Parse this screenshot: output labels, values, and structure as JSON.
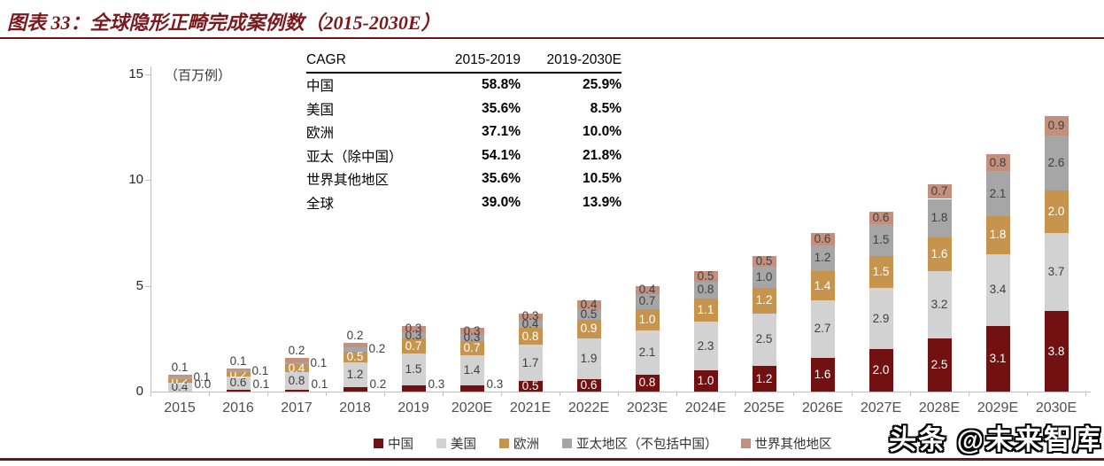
{
  "title": "图表 33：全球隐形正畸完成案例数（2015-2030E）",
  "unit_label": "（百万例）",
  "watermark": "头条 @未来智库",
  "cagr_table": {
    "header": [
      "CAGR",
      "2015-2019",
      "2019-2030E"
    ],
    "rows": [
      [
        "中国",
        "58.8%",
        "25.9%"
      ],
      [
        "美国",
        "35.6%",
        "8.5%"
      ],
      [
        "欧洲",
        "37.1%",
        "10.0%"
      ],
      [
        "亚太（除中国）",
        "54.1%",
        "21.8%"
      ],
      [
        "世界其他地区",
        "35.6%",
        "10.5%"
      ],
      [
        "全球",
        "39.0%",
        "13.9%"
      ]
    ]
  },
  "chart_data": {
    "type": "bar",
    "stacked": true,
    "title": "全球隐形正畸完成案例数（2015-2030E）",
    "ylabel": "百万例",
    "ylim": [
      0,
      15
    ],
    "y_ticks": [
      0,
      5,
      10,
      15
    ],
    "grid": false,
    "legend_position": "bottom",
    "categories": [
      "2015",
      "2016",
      "2017",
      "2018",
      "2019",
      "2020E",
      "2021E",
      "2022E",
      "2023E",
      "2024E",
      "2025E",
      "2026E",
      "2027E",
      "2028E",
      "2029E",
      "2030E"
    ],
    "series": [
      {
        "name": "中国",
        "color": "#721112",
        "values": [
          0.0,
          0.1,
          0.1,
          0.2,
          0.3,
          0.3,
          0.5,
          0.6,
          0.8,
          1.0,
          1.2,
          1.6,
          2.0,
          2.5,
          3.1,
          3.8
        ]
      },
      {
        "name": "美国",
        "color": "#D2D2D2",
        "values": [
          0.4,
          0.6,
          0.8,
          1.2,
          1.5,
          1.4,
          1.7,
          1.9,
          2.1,
          2.3,
          2.5,
          2.7,
          2.9,
          3.2,
          3.4,
          3.7
        ]
      },
      {
        "name": "欧洲",
        "color": "#C6944C",
        "values": [
          0.2,
          0.2,
          0.4,
          0.5,
          0.7,
          0.7,
          0.8,
          0.9,
          1.0,
          1.1,
          1.2,
          1.4,
          1.5,
          1.6,
          1.8,
          2.0
        ]
      },
      {
        "name": "亚太地区（不包括中国）",
        "color": "#A6A6A6",
        "values": [
          0.1,
          0.1,
          0.1,
          0.2,
          0.3,
          0.3,
          0.4,
          0.5,
          0.7,
          0.8,
          1.0,
          1.2,
          1.5,
          1.8,
          2.1,
          2.6
        ]
      },
      {
        "name": "世界其他地区",
        "color": "#C4907E",
        "values": [
          0.1,
          0.1,
          0.2,
          0.2,
          0.3,
          0.3,
          0.3,
          0.4,
          0.4,
          0.5,
          0.5,
          0.6,
          0.6,
          0.7,
          0.8,
          0.9
        ]
      }
    ]
  },
  "colors": {
    "accent_red": "#701318",
    "axis_gray": "#BFBFBF",
    "label_dark": "#3F3F3F",
    "label_light": "#FFFFFF"
  }
}
